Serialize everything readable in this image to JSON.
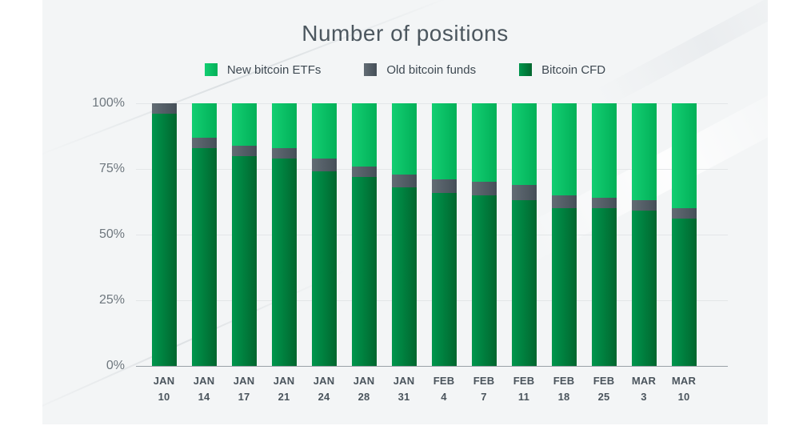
{
  "title": "Number of positions",
  "legend": [
    {
      "label": "New bitcoin ETFs",
      "color_start": "#13ce72",
      "color_end": "#02b058"
    },
    {
      "label": "Old bitcoin funds",
      "color_start": "#626c74",
      "color_end": "#454f58"
    },
    {
      "label": "Bitcoin CFD",
      "color_start": "#00964d",
      "color_end": "#01662e"
    }
  ],
  "chart_data": {
    "type": "bar",
    "stacked": true,
    "percent": true,
    "title": "Number of positions",
    "xlabel": "",
    "ylabel": "",
    "ylim": [
      0,
      100
    ],
    "grid": true,
    "legend_position": "top",
    "y_ticks": [
      "100%",
      "75%",
      "50%",
      "25%",
      "0%"
    ],
    "categories": [
      {
        "month": "JAN",
        "day": "10"
      },
      {
        "month": "JAN",
        "day": "14"
      },
      {
        "month": "JAN",
        "day": "17"
      },
      {
        "month": "JAN",
        "day": "21"
      },
      {
        "month": "JAN",
        "day": "24"
      },
      {
        "month": "JAN",
        "day": "28"
      },
      {
        "month": "JAN",
        "day": "31"
      },
      {
        "month": "FEB",
        "day": "4"
      },
      {
        "month": "FEB",
        "day": "7"
      },
      {
        "month": "FEB",
        "day": "11"
      },
      {
        "month": "FEB",
        "day": "18"
      },
      {
        "month": "FEB",
        "day": "25"
      },
      {
        "month": "MAR",
        "day": "3"
      },
      {
        "month": "MAR",
        "day": "10"
      }
    ],
    "series": [
      {
        "name": "New bitcoin ETFs",
        "key": "new-bitcoin-etfs",
        "values": [
          0,
          13,
          16,
          17,
          21,
          24,
          27,
          29,
          30,
          31,
          35,
          36,
          37,
          40
        ]
      },
      {
        "name": "Old bitcoin funds",
        "key": "old-bitcoin-funds",
        "values": [
          4,
          4,
          4,
          4,
          5,
          4,
          5,
          5,
          5,
          6,
          5,
          4,
          4,
          4
        ]
      },
      {
        "name": "Bitcoin CFD",
        "key": "bitcoin-cfd",
        "values": [
          96,
          83,
          80,
          79,
          74,
          72,
          68,
          66,
          65,
          63,
          60,
          60,
          59,
          56
        ]
      }
    ]
  },
  "colors": {
    "panel_background": "#f3f5f6",
    "gridline": "#e3e6e8",
    "baseline": "#9aa1a7",
    "title_text": "#4c575f",
    "axis_text": "#6e777e",
    "x_label_text": "#4a545c"
  }
}
